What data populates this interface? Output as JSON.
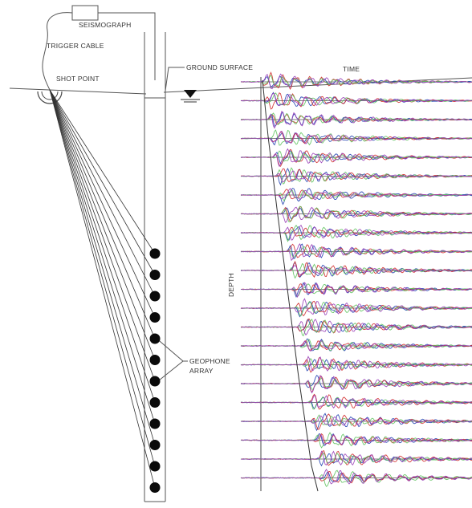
{
  "labels": {
    "seismograph": "SEISMOGRAPH",
    "trigger_cable": "TRIGGER CABLE",
    "shot_point": "SHOT POINT",
    "ground_surface": "GROUND SURFACE",
    "time": "TIME",
    "depth": "DEPTH",
    "geophone_line1": "GEOPHONE",
    "geophone_line2": "ARRAY"
  },
  "geophones": {
    "count": 12
  },
  "traces": {
    "count": 22,
    "colors": [
      "#1f3fb0",
      "#d02a2a",
      "#5fc35f",
      "#9a3fb8"
    ]
  }
}
